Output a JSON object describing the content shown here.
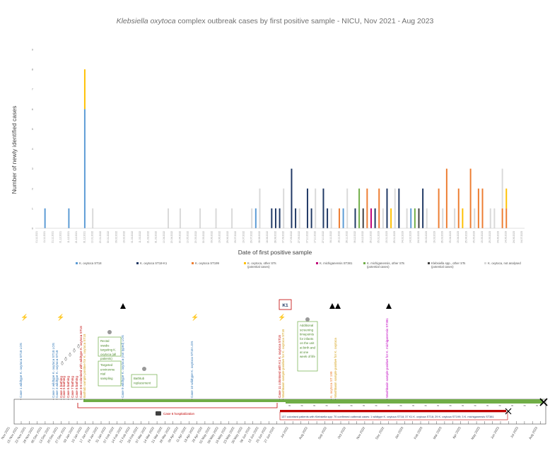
{
  "chart_data": {
    "type": "bar",
    "stacked": true,
    "title": "Klebsiella oxytoca complex outbreak cases by first positive sample - NICU, Nov 2021 - Aug 2023",
    "title_italic_part": "Klebsiella oxytoca",
    "title_rest": " complex outbreak cases by first positive sample - NICU, Nov 2021 - Aug 2023",
    "xlabel": "Date of first positive sample",
    "ylabel": "Number of newly identified cases",
    "ylim": [
      0,
      9
    ],
    "yticks": [
      0,
      1,
      2,
      3,
      4,
      5,
      6,
      7,
      8,
      9
    ],
    "n_slots": 123,
    "first_date": "01.11.2021",
    "date_step_days": 5,
    "series": [
      {
        "name": "K. oxytoca ST18",
        "color": "#5b9bd5"
      },
      {
        "name": "K. oxytoca ST18-K1",
        "color": "#1f3864"
      },
      {
        "name": "K. oxytoca ST199",
        "color": "#ed7d31"
      },
      {
        "name": "K. oxytoca, other STs (potential cases)",
        "color": "#ffc000"
      },
      {
        "name": "K. michiganensis ST381",
        "color": "#c00078"
      },
      {
        "name": "K. michiganensis, other STs (potential cases)",
        "color": "#70ad47"
      },
      {
        "name": "Klebsiella spp., other STs (potential cases)",
        "color": "#404040"
      },
      {
        "name": "K. oxytoca, not analysed",
        "color": "#d9d9d9"
      }
    ],
    "bars": [
      {
        "slot": 2,
        "series": 0,
        "value": 1
      },
      {
        "slot": 8,
        "series": 0,
        "value": 1
      },
      {
        "slot": 12,
        "series": 0,
        "value": 6
      },
      {
        "slot": 12,
        "series": 3,
        "value": 2
      },
      {
        "slot": 14,
        "series": 7,
        "value": 1
      },
      {
        "slot": 33,
        "series": 7,
        "value": 1
      },
      {
        "slot": 36,
        "series": 7,
        "value": 1
      },
      {
        "slot": 41,
        "series": 7,
        "value": 1
      },
      {
        "slot": 45,
        "series": 7,
        "value": 1
      },
      {
        "slot": 49,
        "series": 7,
        "value": 1
      },
      {
        "slot": 54,
        "series": 7,
        "value": 1
      },
      {
        "slot": 55,
        "series": 0,
        "value": 1
      },
      {
        "slot": 56,
        "series": 7,
        "value": 2
      },
      {
        "slot": 59,
        "series": 1,
        "value": 1
      },
      {
        "slot": 60,
        "series": 1,
        "value": 1
      },
      {
        "slot": 61,
        "series": 1,
        "value": 1
      },
      {
        "slot": 62,
        "series": 7,
        "value": 2
      },
      {
        "slot": 64,
        "series": 1,
        "value": 3
      },
      {
        "slot": 65,
        "series": 1,
        "value": 1
      },
      {
        "slot": 66,
        "series": 7,
        "value": 1
      },
      {
        "slot": 68,
        "series": 1,
        "value": 2
      },
      {
        "slot": 69,
        "series": 1,
        "value": 1
      },
      {
        "slot": 70,
        "series": 7,
        "value": 2
      },
      {
        "slot": 72,
        "series": 1,
        "value": 2
      },
      {
        "slot": 73,
        "series": 1,
        "value": 1
      },
      {
        "slot": 74,
        "series": 7,
        "value": 1
      },
      {
        "slot": 76,
        "series": 2,
        "value": 1
      },
      {
        "slot": 77,
        "series": 0,
        "value": 1
      },
      {
        "slot": 78,
        "series": 7,
        "value": 2
      },
      {
        "slot": 80,
        "series": 1,
        "value": 1
      },
      {
        "slot": 81,
        "series": 5,
        "value": 2
      },
      {
        "slot": 82,
        "series": 6,
        "value": 1
      },
      {
        "slot": 83,
        "series": 2,
        "value": 2
      },
      {
        "slot": 84,
        "series": 4,
        "value": 1
      },
      {
        "slot": 85,
        "series": 1,
        "value": 1
      },
      {
        "slot": 86,
        "series": 2,
        "value": 2
      },
      {
        "slot": 87,
        "series": 7,
        "value": 1
      },
      {
        "slot": 88,
        "series": 1,
        "value": 2
      },
      {
        "slot": 89,
        "series": 3,
        "value": 1
      },
      {
        "slot": 90,
        "series": 7,
        "value": 2
      },
      {
        "slot": 91,
        "series": 1,
        "value": 2
      },
      {
        "slot": 93,
        "series": 7,
        "value": 1
      },
      {
        "slot": 94,
        "series": 0,
        "value": 1
      },
      {
        "slot": 95,
        "series": 5,
        "value": 1
      },
      {
        "slot": 96,
        "series": 6,
        "value": 1
      },
      {
        "slot": 97,
        "series": 1,
        "value": 2
      },
      {
        "slot": 98,
        "series": 7,
        "value": 1
      },
      {
        "slot": 101,
        "series": 2,
        "value": 2
      },
      {
        "slot": 102,
        "series": 7,
        "value": 1
      },
      {
        "slot": 103,
        "series": 2,
        "value": 3
      },
      {
        "slot": 105,
        "series": 7,
        "value": 1
      },
      {
        "slot": 106,
        "series": 2,
        "value": 2
      },
      {
        "slot": 107,
        "series": 3,
        "value": 1
      },
      {
        "slot": 109,
        "series": 2,
        "value": 3
      },
      {
        "slot": 110,
        "series": 7,
        "value": 1
      },
      {
        "slot": 111,
        "series": 2,
        "value": 2
      },
      {
        "slot": 112,
        "series": 2,
        "value": 2
      },
      {
        "slot": 114,
        "series": 7,
        "value": 1
      },
      {
        "slot": 115,
        "series": 7,
        "value": 1
      },
      {
        "slot": 117,
        "series": 2,
        "value": 1
      },
      {
        "slot": 117,
        "series": 7,
        "value": 2
      },
      {
        "slot": 118,
        "series": 2,
        "value": 1
      },
      {
        "slot": 118,
        "series": 3,
        "value": 1
      }
    ]
  },
  "legend": {
    "items": [
      {
        "label": "K. oxytoca ST18",
        "color": "#5b9bd5"
      },
      {
        "label": "K. oxytoca ST18-K1",
        "color": "#1f3864"
      },
      {
        "label": "K. oxytoca ST199",
        "color": "#ed7d31"
      },
      {
        "label": "K. oxytoca, other STs",
        "sub": "(potential cases)",
        "color": "#ffc000"
      },
      {
        "label": "K. michiganensis ST381",
        "color": "#c00078"
      },
      {
        "label": "K. michiganensis, other STs",
        "sub": "(potential cases)",
        "color": "#70ad47"
      },
      {
        "label": "Klebsiella spp., other STs",
        "sub": "(potential cases)",
        "color": "#404040"
      },
      {
        "label": "K. oxytoca, not analysed",
        "color": "#d9d9d9"
      }
    ]
  },
  "timeline": {
    "k1_label": "K1",
    "events": [
      {
        "text": "Case 1 wildtype K. oxytoca ST18 LOS",
        "color": "#2e75b6"
      },
      {
        "text": "Case 2 wildtype K. oxytoca ST18 LOS",
        "color": "#2e75b6"
      },
      {
        "text": "Case 3 wildtype K. oxytoca ST18",
        "color": "#2e75b6"
      },
      {
        "text": "Case 4 bathing",
        "color": "#c00000"
      },
      {
        "text": "Case 5 bathing",
        "color": "#c00000"
      },
      {
        "text": "Case 6 bathing",
        "color": "#c00000"
      },
      {
        "text": "Case 7 bathing",
        "color": "#c00000"
      },
      {
        "text": "Case 8 bathing",
        "color": "#c00000"
      },
      {
        "text": "Case 3-8 colonised with wildtype K. oxytoca ST18",
        "color": "#c00000"
      },
      {
        "text": "Bathtub sample positive for K. oxytoca ST18",
        "color": "#d4a017"
      },
      {
        "text": "Case 9 wildtype K. oxytoca (not typed) LOS",
        "color": "#2e75b6"
      },
      {
        "text": "Case 10 wildtype K. oxytoca ST18 LOS",
        "color": "#2e75b6"
      },
      {
        "text": "Case 11 colonised with K1 K. oxytoca ST18",
        "color": "#c00000"
      },
      {
        "text": "Washbasin sample positive for K. oxytoca ST18",
        "color": "#d4a017"
      },
      {
        "text": "K. oxytoca ST 199",
        "color": "#ed7d31"
      },
      {
        "text": "Washbasin sample positive for K. oxytoca",
        "color": "#d4a017"
      },
      {
        "text": "Washbasin sample positive for K. michiganensis ST381",
        "color": "#c000c0"
      }
    ],
    "boxes": [
      {
        "text": "Rectal swabs targeting K. oxytoca (all patients)"
      },
      {
        "text": "Targeted environmental sampling"
      },
      {
        "text": "Bathtub replacement"
      },
      {
        "text": "Additional screening timepoints for infants on the unit at birth and at one week of life"
      }
    ],
    "hospitalization_label": "Case 6 hospitalization",
    "bottom_text": "137 colonised patients with Klebsiella spp: 70 confirmed outbreak cases: 1 wildtype K. oxytoca ST18; 37 K1 K. oxytoca ST18; 29 K. oxytoca ST199; 3 K. michiganensis ST381",
    "dates_left": [
      "Nov 2021",
      "15 Nov 2021",
      "22 Nov 2021",
      "29 Nov 2021",
      "06 Dec 2021",
      "13 Dec 2021",
      "20 Dec 2021",
      "27 Dec 2021",
      "03 Jan 2022",
      "10 Jan 2022",
      "17 Jan 2022",
      "24 Jan 2022",
      "31 Jan 2022",
      "07 Feb 2022",
      "14 Feb 2022",
      "21 Feb 2022",
      "28 Feb 2022",
      "07 Mar 2022",
      "14 Mar 2022",
      "21 Mar 2022",
      "28 Mar 2022",
      "04 Apr 2022",
      "11 Apr 2022",
      "18 Apr 2022",
      "25 Apr 2022",
      "02 May 2022",
      "09 May 2022",
      "16 May 2022",
      "23 May 2022",
      "30 May 2022",
      "06 Jun 2022",
      "13 Jun 2022",
      "20 Jun 2022",
      "27 Jun 2022"
    ],
    "dates_right": [
      "Jul 2022",
      "Aug 2022",
      "Sep 2022",
      "Oct 2022",
      "Nov 2022",
      "Dec 2022",
      "Jan 2023",
      "Feb 2023",
      "Mar 2023",
      "Apr 2023",
      "May 2023",
      "Jun 2023",
      "Jul 2023",
      "Aug 2023"
    ]
  }
}
